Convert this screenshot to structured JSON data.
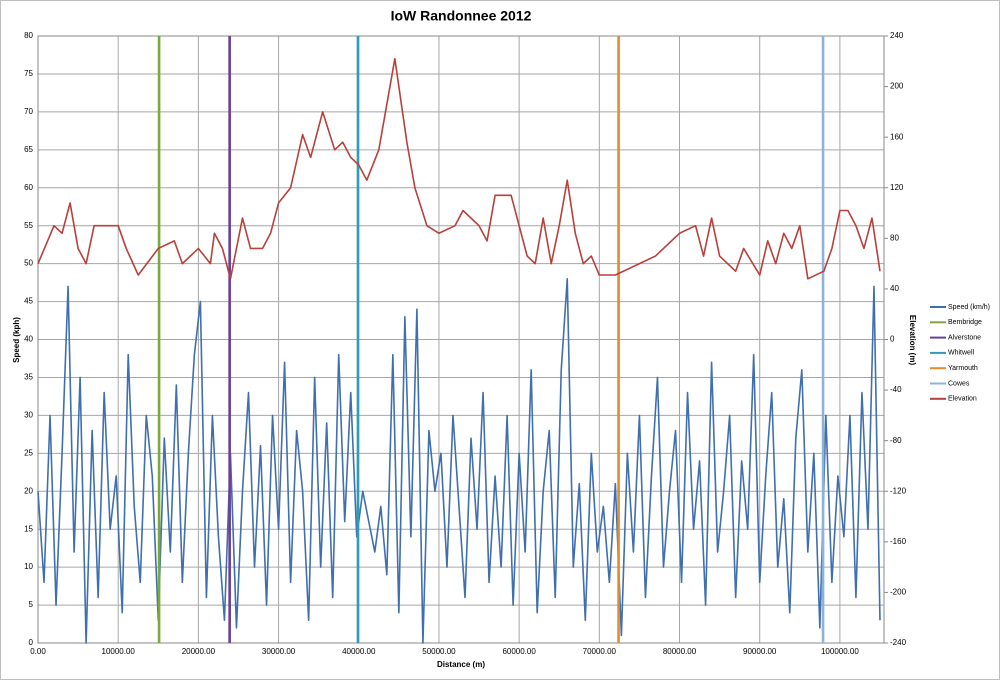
{
  "chart_data": {
    "type": "line",
    "title": "IoW Randonnee 2012",
    "x_label": "Distance (m)",
    "y_label": "Speed (kph)",
    "y2_label": "Elevation (m)",
    "xlim": [
      0,
      105500
    ],
    "xticks": [
      {
        "value": 0,
        "label": "0.00"
      },
      {
        "value": 10000,
        "label": "10000.00"
      },
      {
        "value": 20000,
        "label": "20000.00"
      },
      {
        "value": 30000,
        "label": "30000.00"
      },
      {
        "value": 40000,
        "label": "40000.00"
      },
      {
        "value": 50000,
        "label": "50000.00"
      },
      {
        "value": 60000,
        "label": "60000.00"
      },
      {
        "value": 70000,
        "label": "70000.00"
      },
      {
        "value": 80000,
        "label": "80000.00"
      },
      {
        "value": 90000,
        "label": "90000.00"
      },
      {
        "value": 100000,
        "label": "100000.00"
      }
    ],
    "ylim": [
      0,
      80
    ],
    "yticks": [
      0,
      5,
      10,
      15,
      20,
      25,
      30,
      35,
      40,
      45,
      50,
      55,
      60,
      65,
      70,
      75,
      80
    ],
    "y2lim": [
      -240,
      240
    ],
    "y2ticks": [
      -240,
      -200,
      -160,
      -120,
      -80,
      -40,
      0,
      40,
      80,
      120,
      160,
      200,
      240
    ],
    "grid": true,
    "legend": "right",
    "series": [
      {
        "name": "Speed (km/h)",
        "color": "#3f6fae",
        "x": [
          0,
          750,
          1500,
          2250,
          3000,
          3750,
          4500,
          5250,
          6000,
          6750,
          7500,
          8250,
          9000,
          9750,
          10500,
          11250,
          12000,
          12750,
          13500,
          14250,
          15000,
          15750,
          16500,
          17250,
          18000,
          18750,
          19500,
          20250,
          21000,
          21750,
          22500,
          23250,
          24000,
          24750,
          25500,
          26250,
          27000,
          27750,
          28500,
          29250,
          30000,
          30750,
          31500,
          32250,
          33000,
          33750,
          34500,
          35250,
          36000,
          36750,
          37500,
          38250,
          39000,
          39750,
          40500,
          41250,
          42000,
          42750,
          43500,
          44250,
          45000,
          45750,
          46500,
          47250,
          48000,
          48750,
          49500,
          50250,
          51000,
          51750,
          52500,
          53250,
          54000,
          54750,
          55500,
          56250,
          57000,
          57750,
          58500,
          59250,
          60000,
          60750,
          61500,
          62250,
          63000,
          63750,
          64500,
          65250,
          66000,
          66750,
          67500,
          68250,
          69000,
          69750,
          70500,
          71250,
          72000,
          72750,
          73500,
          74250,
          75000,
          75750,
          76500,
          77250,
          78000,
          78750,
          79500,
          80250,
          81000,
          81750,
          82500,
          83250,
          84000,
          84750,
          85500,
          86250,
          87000,
          87750,
          88500,
          89250,
          90000,
          90750,
          91500,
          92250,
          93000,
          93750,
          94500,
          95250,
          96000,
          96750,
          97500,
          98250,
          99000,
          99750,
          100500,
          101250,
          102000,
          102750,
          103500,
          104250,
          105000
        ],
        "values": [
          20,
          8,
          30,
          5,
          25,
          47,
          12,
          35,
          0,
          28,
          6,
          33,
          15,
          22,
          4,
          38,
          18,
          8,
          30,
          22,
          3,
          27,
          12,
          34,
          8,
          25,
          38,
          45,
          6,
          30,
          14,
          3,
          25,
          2,
          20,
          33,
          10,
          26,
          5,
          30,
          15,
          37,
          8,
          28,
          20,
          3,
          35,
          10,
          29,
          6,
          38,
          16,
          33,
          14,
          20,
          16,
          12,
          18,
          9,
          38,
          4,
          43,
          14,
          44,
          0,
          28,
          20,
          25,
          10,
          30,
          18,
          6,
          27,
          15,
          33,
          8,
          22,
          10,
          30,
          5,
          25,
          12,
          36,
          4,
          20,
          28,
          6,
          36,
          48,
          10,
          21,
          3,
          25,
          12,
          18,
          8,
          21,
          1,
          25,
          12,
          30,
          6,
          22,
          35,
          10,
          20,
          28,
          8,
          33,
          15,
          24,
          5,
          37,
          12,
          20,
          30,
          6,
          24,
          15,
          38,
          8,
          22,
          33,
          10,
          19,
          4,
          27,
          36,
          12,
          25,
          2,
          30,
          8,
          22,
          14,
          30,
          6,
          33,
          15,
          47,
          3
        ]
      },
      {
        "name": "Bembridge",
        "color": "#7aa83c",
        "x": [
          15100,
          15100
        ],
        "values": [
          0,
          80
        ]
      },
      {
        "name": "Alverstone",
        "color": "#6b3f98",
        "x": [
          23900,
          23900
        ],
        "values": [
          0,
          80
        ]
      },
      {
        "name": "Whitwell",
        "color": "#2f9db8",
        "x": [
          39900,
          39900
        ],
        "values": [
          0,
          80
        ]
      },
      {
        "name": "Yarmouth",
        "color": "#e68a2e",
        "x": [
          72400,
          72400
        ],
        "values": [
          0,
          80
        ]
      },
      {
        "name": "Cowes",
        "color": "#8db3d8",
        "x": [
          97900,
          97900
        ],
        "values": [
          0,
          80
        ]
      },
      {
        "name": "Elevation",
        "color": "#b8403a",
        "axis": "y2",
        "x": [
          0,
          2000,
          3000,
          4000,
          5000,
          6000,
          7000,
          10000,
          11000,
          12500,
          15000,
          17000,
          18000,
          20000,
          21500,
          22000,
          23000,
          24000,
          25500,
          26500,
          28000,
          29000,
          30000,
          31500,
          33000,
          34000,
          35500,
          37000,
          38000,
          39000,
          40000,
          41000,
          42500,
          44500,
          46000,
          47000,
          48500,
          50000,
          52000,
          53000,
          55000,
          56000,
          57000,
          58000,
          59000,
          60000,
          61000,
          62000,
          63000,
          64000,
          65000,
          66000,
          67000,
          68000,
          69000,
          70000,
          72000,
          75000,
          77000,
          80000,
          82000,
          83000,
          84000,
          85000,
          87000,
          88000,
          90000,
          91000,
          92000,
          93000,
          94000,
          95000,
          96000,
          98000,
          99000,
          100000,
          101000,
          102000,
          103000,
          104000,
          105000
        ],
        "values": [
          60,
          90,
          84,
          108,
          72,
          60,
          90,
          90,
          72,
          51,
          72,
          78,
          60,
          72,
          60,
          84,
          72,
          48,
          96,
          72,
          72,
          84,
          108,
          120,
          162,
          144,
          180,
          150,
          156,
          144,
          138,
          126,
          150,
          222,
          156,
          120,
          90,
          84,
          90,
          102,
          90,
          78,
          114,
          114,
          114,
          90,
          66,
          60,
          96,
          60,
          90,
          126,
          84,
          60,
          66,
          51,
          51,
          60,
          66,
          84,
          90,
          66,
          96,
          66,
          54,
          72,
          51,
          78,
          60,
          84,
          72,
          90,
          48,
          54,
          72,
          102,
          102,
          90,
          72,
          96,
          54
        ]
      }
    ]
  }
}
